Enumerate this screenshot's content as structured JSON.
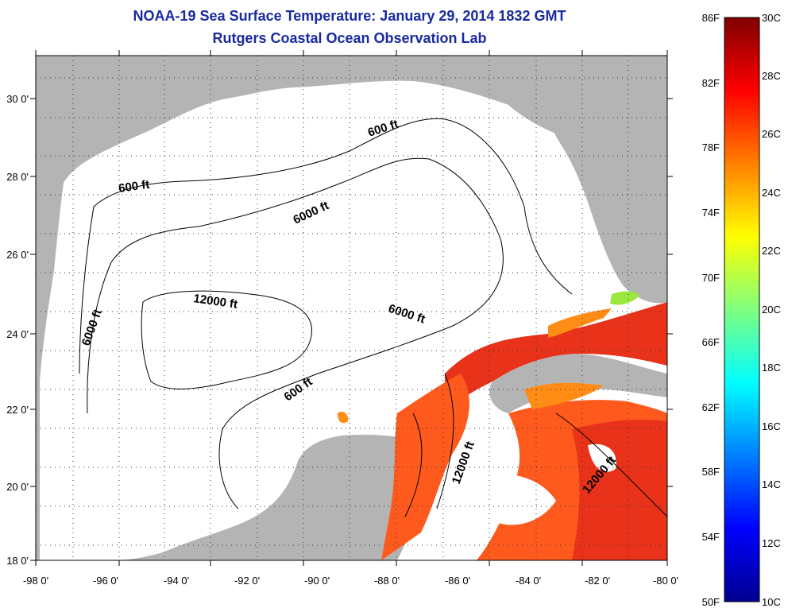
{
  "title": {
    "line1": "NOAA-19 Sea Surface Temperature:  January 29, 2014 1832 GMT",
    "line2": "Rutgers Coastal Ocean Observation Lab"
  },
  "map": {
    "region": "Gulf of Mexico",
    "lon_range": [
      -98,
      -80
    ],
    "lat_range": [
      18,
      31
    ],
    "x_ticks": [
      "-98 0'",
      "-96 0'",
      "-94 0'",
      "-92 0'",
      "-90 0'",
      "-88 0'",
      "-86 0'",
      "-84 0'",
      "-82 0'",
      "-80 0'"
    ],
    "y_ticks": [
      "30 0'",
      "28 0'",
      "26 0'",
      "24 0'",
      "22 0'",
      "20 0'",
      "18 0'"
    ],
    "contour_labels": [
      "600 ft",
      "600 ft",
      "6000 ft",
      "6000 ft",
      "6000 ft",
      "12000 ft",
      "600 ft",
      "12000 ft",
      "12000 ft"
    ],
    "colors": {
      "land": "#b4b4b4",
      "ocean_no_data": "#ffffff",
      "sst_warm": "#ff5a1e",
      "sst_red": "#e8321a",
      "sst_orange": "#ff8c14",
      "sst_yellowgreen": "#9be83c"
    }
  },
  "colorbar": {
    "f_labels": [
      "86F",
      "82F",
      "78F",
      "74F",
      "70F",
      "66F",
      "62F",
      "58F",
      "54F",
      "50F"
    ],
    "c_labels": [
      "30C",
      "28C",
      "26C",
      "24C",
      "22C",
      "20C",
      "18C",
      "16C",
      "14C",
      "12C",
      "10C"
    ],
    "range_c": [
      10,
      30
    ],
    "range_f": [
      50,
      86
    ],
    "colormap": "jet"
  }
}
